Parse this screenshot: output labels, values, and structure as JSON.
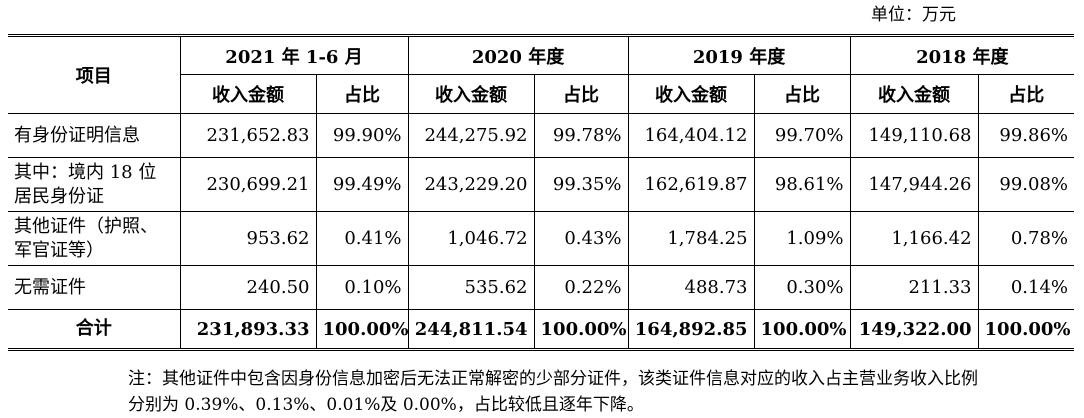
{
  "unit_label": "单位：万元",
  "header": {
    "item": "项目",
    "periods": [
      "2021 年 1-6 月",
      "2020 年度",
      "2019 年度",
      "2018 年度"
    ],
    "amount": "收入金额",
    "ratio": "占比"
  },
  "rows": [
    {
      "label": "有身份证明信息",
      "values": [
        "231,652.83",
        "99.90%",
        "244,275.92",
        "99.78%",
        "164,404.12",
        "99.70%",
        "149,110.68",
        "99.86%"
      ]
    },
    {
      "label": "其中：境内 18 位居民身份证",
      "values": [
        "230,699.21",
        "99.49%",
        "243,229.20",
        "99.35%",
        "162,619.87",
        "98.61%",
        "147,944.26",
        "99.08%"
      ]
    },
    {
      "label": "其他证件（护照、军官证等）",
      "values": [
        "953.62",
        "0.41%",
        "1,046.72",
        "0.43%",
        "1,784.25",
        "1.09%",
        "1,166.42",
        "0.78%"
      ]
    },
    {
      "label": "无需证件",
      "values": [
        "240.50",
        "0.10%",
        "535.62",
        "0.22%",
        "488.73",
        "0.30%",
        "211.33",
        "0.14%"
      ]
    }
  ],
  "total": {
    "label": "合计",
    "values": [
      "231,893.33",
      "100.00%",
      "244,811.54",
      "100.00%",
      "164,892.85",
      "100.00%",
      "149,322.00",
      "100.00%"
    ]
  },
  "note": "注：其他证件中包含因身份信息加密后无法正常解密的少部分证件，该类证件信息对应的收入占主营业务收入比例分别为 0.39%、0.13%、0.01%及 0.00%，占比较低且逐年下降。"
}
